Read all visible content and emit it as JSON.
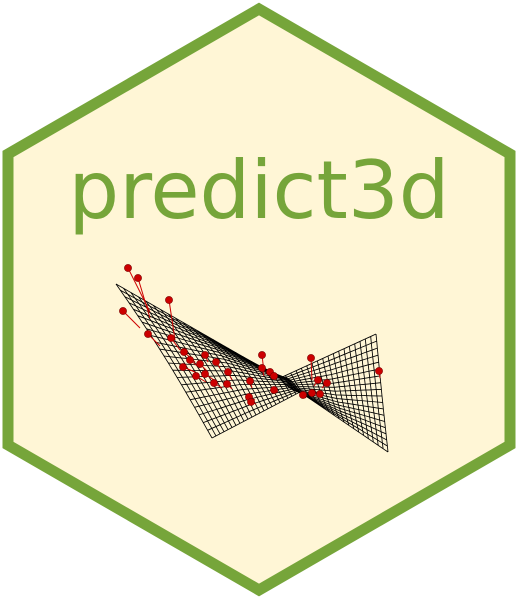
{
  "title": "predict3d",
  "colors": {
    "border": "#76A53A",
    "fill": "#FFF6D6",
    "title": "#76A53A",
    "mesh": "#000000",
    "points": "#CC0000"
  }
}
